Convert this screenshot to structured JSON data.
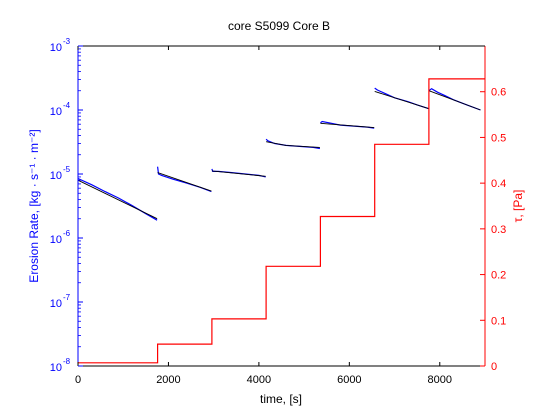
{
  "chart_data": {
    "type": "line",
    "title": "core S5099 Core B",
    "xlabel": "time, [s]",
    "ylabel_left": "Erosion Rate, [kg · s⁻¹ · m⁻²]",
    "ylabel_right": "τ, [Pa]",
    "xlim": [
      0,
      9000
    ],
    "ylim_left": [
      1e-08,
      0.001
    ],
    "ylim_right": [
      0,
      0.7
    ],
    "left_scale": "log",
    "grid": false,
    "legend": "none",
    "x_ticks": [
      "0",
      "2000",
      "4000",
      "6000",
      "8000"
    ],
    "left_tick_labels": [
      {
        "base": "10",
        "exp": "-8"
      },
      {
        "base": "10",
        "exp": "-7"
      },
      {
        "base": "10",
        "exp": "-6"
      },
      {
        "base": "10",
        "exp": "-5"
      },
      {
        "base": "10",
        "exp": "-4"
      },
      {
        "base": "10",
        "exp": "-3"
      }
    ],
    "right_ticks": [
      "0",
      "0.1",
      "0.2",
      "0.3",
      "0.4",
      "0.5",
      "0.6"
    ],
    "colors": {
      "erosion_measured": "#0000ff",
      "erosion_fit": "#000000",
      "shear_stress": "#ff0000",
      "axes": "#000000"
    },
    "series": [
      {
        "axis": "left",
        "color": "#0000ff",
        "segments": [
          {
            "x": [
              0,
              300,
              600,
              900,
              1200,
              1500,
              1750
            ],
            "y": [
              8.5e-06,
              6.8e-06,
              5.3e-06,
              4.2e-06,
              3.2e-06,
              2.4e-06,
              1.9e-06
            ]
          },
          {
            "x": [
              1760,
              1780,
              1850,
              2100,
              2400,
              2700,
              2950
            ],
            "y": [
              1.3e-05,
              1e-05,
              9.5e-06,
              8.3e-06,
              7.2e-06,
              6.2e-06,
              5.3e-06
            ]
          },
          {
            "x": [
              2960,
              2980,
              3100,
              3400,
              3700,
              4000,
              4150
            ],
            "y": [
              1.2e-05,
              1.1e-05,
              1.1e-05,
              1.05e-05,
              1e-05,
              9.5e-06,
              9e-06
            ]
          },
          {
            "x": [
              4160,
              4200,
              4350,
              4600,
              4900,
              5200,
              5350
            ],
            "y": [
              3.5e-05,
              3.3e-05,
              3e-05,
              2.8e-05,
              2.7e-05,
              2.6e-05,
              2.5e-05
            ]
          },
          {
            "x": [
              5360,
              5400,
              5550,
              5800,
              6100,
              6400,
              6550
            ],
            "y": [
              6.3e-05,
              6.6e-05,
              6.3e-05,
              5.8e-05,
              5.6e-05,
              5.4e-05,
              5.2e-05
            ]
          },
          {
            "x": [
              6560,
              6620,
              6800,
              7000,
              7300,
              7500,
              7750
            ],
            "y": [
              0.00022,
              0.000205,
              0.00018,
              0.000155,
              0.000135,
              0.00012,
              0.000105
            ]
          },
          {
            "x": [
              7760,
              7820,
              7950,
              8100,
              8300,
              8600,
              8900
            ],
            "y": [
              0.0002,
              0.000215,
              0.00019,
              0.00017,
              0.000145,
              0.00012,
              0.0001
            ]
          }
        ]
      },
      {
        "axis": "left",
        "color": "#000000",
        "segments": [
          {
            "x": [
              0,
              1750
            ],
            "y": [
              8e-06,
              2e-06
            ]
          },
          {
            "x": [
              1760,
              2950
            ],
            "y": [
              1.05e-05,
              5.4e-06
            ]
          },
          {
            "x": [
              2960,
              4150
            ],
            "y": [
              1.12e-05,
              9.2e-06
            ]
          },
          {
            "x": [
              4160,
              4600,
              5350
            ],
            "y": [
              3.2e-05,
              2.8e-05,
              2.6e-05
            ]
          },
          {
            "x": [
              5360,
              6550
            ],
            "y": [
              6.2e-05,
              5.3e-05
            ]
          },
          {
            "x": [
              6560,
              7750
            ],
            "y": [
              0.000195,
              0.000105
            ]
          },
          {
            "x": [
              7760,
              8900
            ],
            "y": [
              0.0002,
              0.0001
            ]
          }
        ]
      },
      {
        "axis": "right",
        "color": "#ff0000",
        "steps": [
          {
            "x0": 0,
            "x1": 1760,
            "y": 0.007
          },
          {
            "x0": 1760,
            "x1": 2960,
            "y": 0.048
          },
          {
            "x0": 2960,
            "x1": 4160,
            "y": 0.103
          },
          {
            "x0": 4160,
            "x1": 5360,
            "y": 0.218
          },
          {
            "x0": 5360,
            "x1": 6560,
            "y": 0.327
          },
          {
            "x0": 6560,
            "x1": 7760,
            "y": 0.485
          },
          {
            "x0": 7760,
            "x1": 9000,
            "y": 0.628
          }
        ]
      }
    ]
  }
}
